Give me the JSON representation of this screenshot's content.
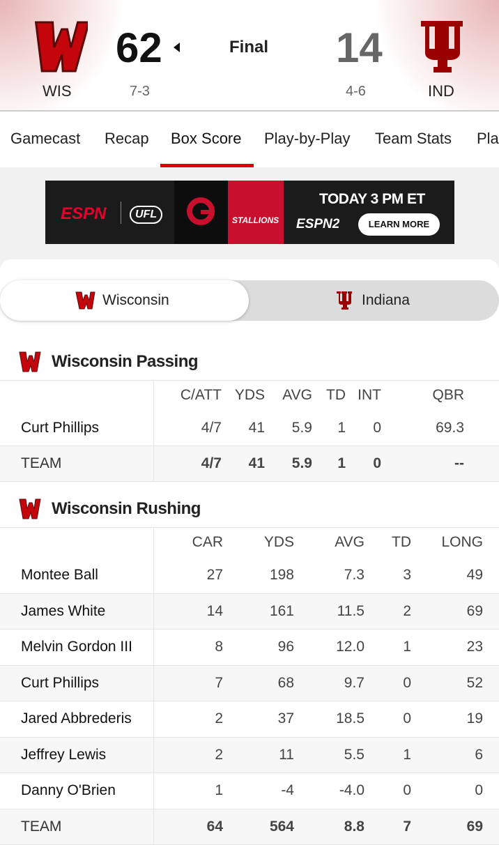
{
  "header": {
    "home": {
      "abbr": "WIS",
      "score": "62",
      "record": "7-3"
    },
    "status": "Final",
    "away": {
      "abbr": "IND",
      "score": "14",
      "record": "4-6"
    }
  },
  "tabs": [
    "Gamecast",
    "Recap",
    "Box Score",
    "Play-by-Play",
    "Team Stats",
    "Pla"
  ],
  "ad": {
    "brand": "ESPN",
    "league": "UFL",
    "team": "STALLIONS",
    "headline": "TODAY 3 PM ET",
    "network": "ESPN2",
    "cta": "LEARN MORE"
  },
  "team_toggle": [
    "Wisconsin",
    "Indiana"
  ],
  "passing": {
    "title": "Wisconsin Passing",
    "columns": [
      "C/ATT",
      "YDS",
      "AVG",
      "TD",
      "INT",
      "QBR"
    ],
    "rows": [
      [
        "Curt Phillips",
        "4/7",
        "41",
        "5.9",
        "1",
        "0",
        "69.3"
      ]
    ],
    "total": [
      "TEAM",
      "4/7",
      "41",
      "5.9",
      "1",
      "0",
      "--"
    ]
  },
  "rushing": {
    "title": "Wisconsin Rushing",
    "columns": [
      "CAR",
      "YDS",
      "AVG",
      "TD",
      "LONG"
    ],
    "rows": [
      [
        "Montee Ball",
        "27",
        "198",
        "7.3",
        "3",
        "49"
      ],
      [
        "James White",
        "14",
        "161",
        "11.5",
        "2",
        "69"
      ],
      [
        "Melvin Gordon III",
        "8",
        "96",
        "12.0",
        "1",
        "23"
      ],
      [
        "Curt Phillips",
        "7",
        "68",
        "9.7",
        "0",
        "52"
      ],
      [
        "Jared Abbrederis",
        "2",
        "37",
        "18.5",
        "0",
        "19"
      ],
      [
        "Jeffrey Lewis",
        "2",
        "11",
        "5.5",
        "1",
        "6"
      ],
      [
        "Danny O'Brien",
        "1",
        "-4",
        "-4.0",
        "0",
        "0"
      ]
    ],
    "total": [
      "TEAM",
      "64",
      "564",
      "8.8",
      "7",
      "69"
    ]
  }
}
